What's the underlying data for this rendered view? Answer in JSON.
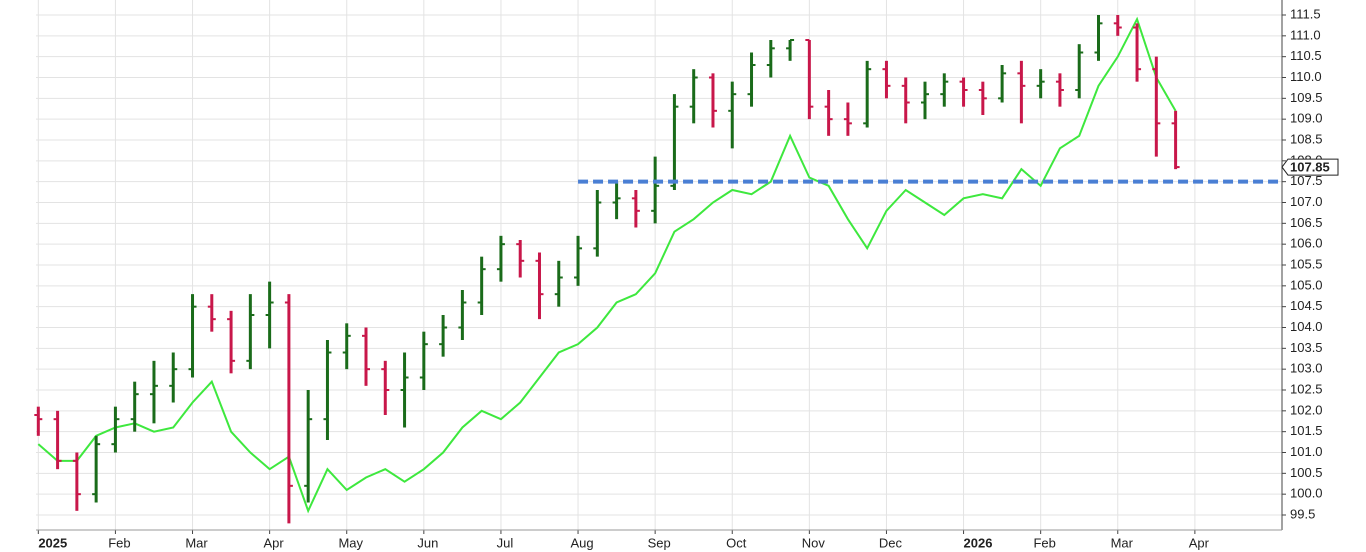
{
  "chart_data": {
    "type": "ohlc",
    "xlim": [
      -0.03,
      16.13
    ],
    "xticks": [
      {
        "value": 0,
        "label": "2025"
      },
      {
        "value": 1,
        "label": "Feb"
      },
      {
        "value": 2,
        "label": "Mar"
      },
      {
        "value": 3,
        "label": "Apr"
      },
      {
        "value": 4,
        "label": "May"
      },
      {
        "value": 5,
        "label": "Jun"
      },
      {
        "value": 6,
        "label": "Jul"
      },
      {
        "value": 7,
        "label": "Aug"
      },
      {
        "value": 8,
        "label": "Sep"
      },
      {
        "value": 9,
        "label": "Oct"
      },
      {
        "value": 10,
        "label": "Nov"
      },
      {
        "value": 11,
        "label": "Dec"
      },
      {
        "value": 12,
        "label": "2026"
      },
      {
        "value": 13,
        "label": "Feb"
      },
      {
        "value": 14,
        "label": "Mar"
      },
      {
        "value": 15,
        "label": "Apr"
      }
    ],
    "ylim": [
      99.14,
      111.86
    ],
    "yticks": [
      99.5,
      {
        "value": 100,
        "label": "100.0"
      },
      100.5,
      {
        "value": 101,
        "label": "101.0"
      },
      101.5,
      {
        "value": 102,
        "label": "102.0"
      },
      102.5,
      {
        "value": 103,
        "label": "103.0"
      },
      103.5,
      {
        "value": 104,
        "label": "104.0"
      },
      104.5,
      {
        "value": 105,
        "label": "105.0"
      },
      105.5,
      {
        "value": 106,
        "label": "106.0"
      },
      106.5,
      {
        "value": 107,
        "label": "107.0"
      },
      107.5,
      {
        "value": 108,
        "label": "108.0"
      },
      108.5,
      {
        "value": 109,
        "label": "109.0"
      },
      109.5,
      {
        "value": 110,
        "label": "110.0"
      },
      110.5,
      {
        "value": 111,
        "label": "111.0"
      },
      111.5
    ],
    "grid": true,
    "up_color": "#1a6b1a",
    "down_color": "#c8174a",
    "x": [
      0,
      0.25,
      0.5,
      0.75,
      1,
      1.25,
      1.5,
      1.75,
      2,
      2.25,
      2.5,
      2.75,
      3,
      3.25,
      3.5,
      3.75,
      4,
      4.25,
      4.5,
      4.75,
      5,
      5.25,
      5.5,
      5.75,
      6,
      6.25,
      6.5,
      6.75,
      7,
      7.25,
      7.5,
      7.75,
      8,
      8.25,
      8.5,
      8.75,
      9,
      9.25,
      9.5,
      9.75,
      10,
      10.25,
      10.5,
      10.75,
      11,
      11.25,
      11.5,
      11.75,
      12,
      12.25,
      12.5,
      12.75,
      13,
      13.25,
      13.5,
      13.75,
      14,
      14.25,
      14.5,
      14.75
    ],
    "open": [
      101.9,
      101.8,
      100.8,
      100.0,
      101.2,
      101.8,
      102.4,
      102.6,
      103.0,
      104.5,
      104.2,
      103.2,
      104.3,
      104.6,
      100.2,
      101.8,
      103.4,
      103.8,
      103.0,
      102.5,
      102.8,
      103.6,
      104.0,
      104.6,
      105.4,
      106.0,
      105.6,
      104.8,
      105.2,
      105.9,
      107.0,
      107.1,
      106.8,
      107.4,
      109.3,
      110.0,
      109.2,
      109.6,
      110.3,
      110.7,
      110.9,
      109.3,
      109.0,
      108.9,
      110.2,
      109.8,
      109.4,
      109.6,
      109.9,
      109.7,
      109.5,
      110.1,
      109.8,
      109.9,
      109.7,
      110.6,
      111.3,
      111.2,
      110.2,
      108.9
    ],
    "high": [
      102.1,
      102.0,
      101.0,
      101.4,
      102.1,
      102.7,
      103.2,
      103.4,
      104.8,
      104.8,
      104.4,
      104.8,
      105.1,
      104.8,
      102.5,
      103.7,
      104.1,
      104.0,
      103.2,
      103.4,
      103.9,
      104.3,
      104.9,
      105.7,
      106.2,
      106.1,
      105.8,
      105.6,
      106.2,
      107.3,
      107.5,
      107.3,
      108.1,
      109.6,
      110.2,
      110.1,
      109.9,
      110.6,
      110.9,
      110.9,
      110.9,
      109.7,
      109.4,
      110.4,
      110.4,
      110.0,
      109.9,
      110.1,
      110.0,
      109.9,
      110.3,
      110.4,
      110.2,
      110.1,
      110.8,
      111.5,
      111.5,
      111.3,
      110.5,
      109.2
    ],
    "low": [
      101.4,
      100.6,
      99.6,
      99.8,
      101.0,
      101.5,
      101.7,
      102.2,
      102.8,
      103.9,
      102.9,
      103.0,
      103.5,
      99.3,
      99.8,
      101.3,
      103.0,
      102.6,
      101.9,
      101.6,
      102.5,
      103.3,
      103.7,
      104.3,
      105.1,
      105.2,
      104.2,
      104.5,
      105.0,
      105.7,
      106.6,
      106.4,
      106.5,
      107.3,
      108.9,
      108.8,
      108.3,
      109.3,
      110.0,
      110.4,
      109.0,
      108.6,
      108.6,
      108.8,
      109.5,
      108.9,
      109.0,
      109.3,
      109.3,
      109.1,
      109.4,
      108.9,
      109.5,
      109.3,
      109.5,
      110.4,
      111.0,
      109.9,
      108.1,
      107.8
    ],
    "close": [
      101.8,
      100.8,
      100.0,
      101.2,
      101.8,
      102.4,
      102.6,
      103.0,
      104.5,
      104.2,
      103.2,
      104.3,
      104.6,
      100.2,
      101.8,
      103.4,
      103.8,
      103.0,
      102.5,
      102.8,
      103.6,
      104.0,
      104.6,
      105.4,
      106.0,
      105.6,
      104.8,
      105.2,
      105.9,
      107.0,
      107.1,
      106.8,
      107.4,
      109.3,
      110.0,
      109.2,
      109.6,
      110.3,
      110.7,
      110.9,
      109.3,
      109.0,
      108.9,
      110.2,
      109.8,
      109.4,
      109.6,
      109.9,
      109.7,
      109.5,
      110.1,
      109.8,
      109.9,
      109.7,
      110.6,
      111.3,
      111.2,
      110.2,
      108.9,
      107.85
    ],
    "line": {
      "color": "#3ee83e",
      "values": [
        101.2,
        100.8,
        100.8,
        101.4,
        101.6,
        101.7,
        101.5,
        101.6,
        102.2,
        102.7,
        101.5,
        101.0,
        100.6,
        100.9,
        99.6,
        100.6,
        100.1,
        100.4,
        100.6,
        100.3,
        100.6,
        101.0,
        101.6,
        102.0,
        101.8,
        102.2,
        102.8,
        103.4,
        103.6,
        104.0,
        104.6,
        104.8,
        105.3,
        106.3,
        106.6,
        107.0,
        107.3,
        107.2,
        107.5,
        108.6,
        107.6,
        107.4,
        106.6,
        105.9,
        106.8,
        107.3,
        107.0,
        106.7,
        107.1,
        107.2,
        107.1,
        107.8,
        107.4,
        108.3,
        108.6,
        109.8,
        110.5,
        111.4,
        110.0,
        109.2
      ]
    },
    "hline": {
      "y": 107.5,
      "x_start": 7,
      "color": "#4a7fd4"
    },
    "last_price": 107.85
  }
}
